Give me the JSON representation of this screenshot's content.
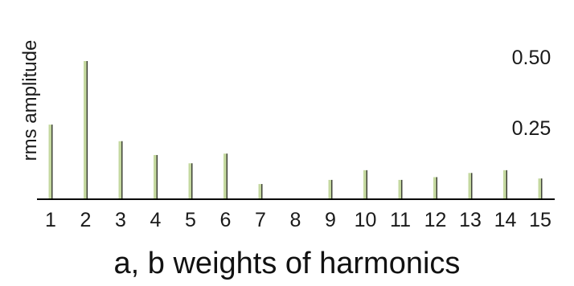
{
  "chart_data": {
    "type": "bar",
    "categories": [
      "1",
      "2",
      "3",
      "4",
      "5",
      "6",
      "7",
      "8",
      "9",
      "10",
      "11",
      "12",
      "13",
      "14",
      "15"
    ],
    "values": [
      0.27,
      0.5,
      0.21,
      0.16,
      0.13,
      0.165,
      0.055,
      0.0,
      0.07,
      0.105,
      0.07,
      0.08,
      0.095,
      0.105,
      0.075
    ],
    "title": "a, b weights of harmonics",
    "xlabel": "",
    "ylabel": "rms amplitude",
    "y_tick_labels": [
      "0.50",
      "0.25"
    ],
    "y_tick_values": [
      0.5,
      0.25
    ],
    "ylim": [
      0,
      0.58
    ],
    "grid": false,
    "legend": "none",
    "colors": {
      "bar": "#c5d9a0",
      "bar_edge": "#1f1f1f",
      "axis": "#000000"
    }
  }
}
